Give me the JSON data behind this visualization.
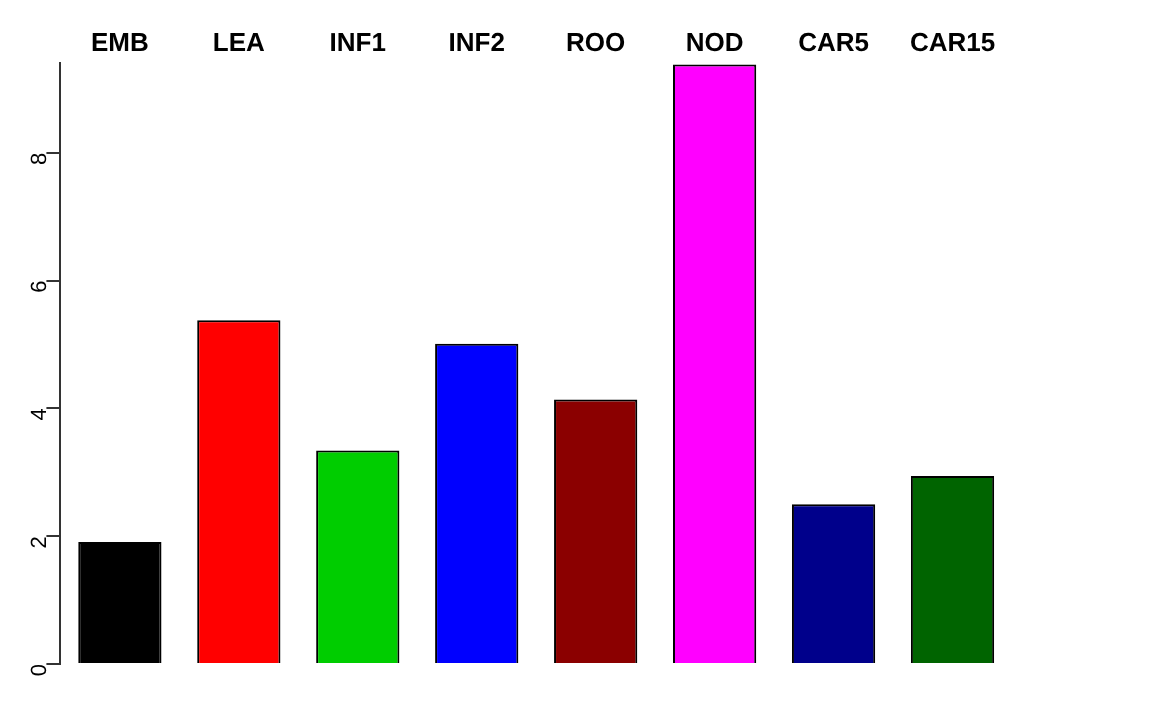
{
  "chart_data": {
    "type": "bar",
    "categories": [
      "EMB",
      "LEA",
      "INF1",
      "INF2",
      "ROO",
      "NOD",
      "CAR5",
      "CAR15"
    ],
    "values": [
      1.91,
      5.38,
      3.34,
      5.01,
      4.14,
      9.38,
      2.5,
      2.94
    ],
    "colors": [
      "#000000",
      "#ff0000",
      "#00cd00",
      "#0000ff",
      "#8b0000",
      "#ff00ff",
      "#00008b",
      "#006400"
    ],
    "ylim": [
      0,
      9.4
    ],
    "yticks": [
      0,
      2,
      4,
      6,
      8
    ],
    "grid": false,
    "legend": false
  }
}
